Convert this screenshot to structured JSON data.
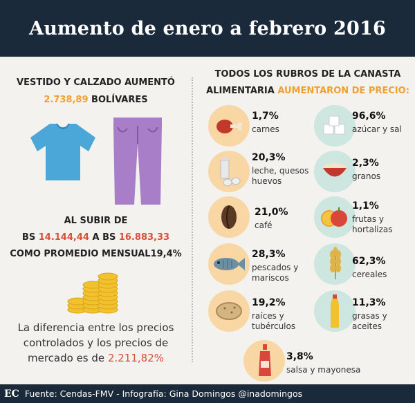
{
  "title": "Aumento de enero a febrero 2016",
  "left": {
    "heading_line1": "VESTIDO Y CALZADO AUMENTÓ",
    "amount": "2.738,89",
    "currency": "BOLÍVARES",
    "al_subir": "AL SUBIR DE",
    "bs1": "BS",
    "from_value": "14.144,44",
    "a": "A",
    "bs2": "BS",
    "to_value": "16.883,33",
    "promedio": "COMO PROMEDIO MENSUAL",
    "promedio_pct": "19,4%",
    "diff_line1": "La diferencia entre los precios",
    "diff_line2": "controlados y los precios de",
    "diff_line3": "mercado es de",
    "diff_value": "2.211,82%"
  },
  "right": {
    "heading_line1": "TODOS LOS RUBROS DE LA CANASTA",
    "heading_line2a": "ALIMENTARIA",
    "heading_line2b": "AUMENTARON DE PRECIO:",
    "items": [
      {
        "pct": "1,7%",
        "label": "carnes",
        "icon": "meat-icon"
      },
      {
        "pct": "96,6%",
        "label": "azúcar y sal",
        "icon": "sugar-cubes-icon"
      },
      {
        "pct": "20,3%",
        "label1": "leche, quesos",
        "label2": "huevos",
        "icon": "milk-eggs-icon"
      },
      {
        "pct": "2,3%",
        "label": "granos",
        "icon": "bowl-grains-icon"
      },
      {
        "pct": "21,0%",
        "label": "café",
        "icon": "coffee-bean-icon"
      },
      {
        "pct": "1,1%",
        "label1": "frutas y",
        "label2": "hortalizas",
        "icon": "fruits-icon"
      },
      {
        "pct": "28,3%",
        "label1": "pescados y",
        "label2": "mariscos",
        "icon": "fish-icon"
      },
      {
        "pct": "62,3%",
        "label": "cereales",
        "icon": "wheat-icon"
      },
      {
        "pct": "19,2%",
        "label1": "raíces y",
        "label2": "tubérculos",
        "icon": "potato-icon"
      },
      {
        "pct": "11,3%",
        "label1": "grasas y",
        "label2": "aceites",
        "icon": "oil-bottle-icon"
      },
      {
        "pct": "3,8%",
        "label": "salsa y mayonesa",
        "icon": "sauce-bottle-icon"
      }
    ]
  },
  "footer": {
    "logo": "EC",
    "source": "Fuente: Cendas-FMV - Infografía: Gina Domingos @inadomingos"
  }
}
